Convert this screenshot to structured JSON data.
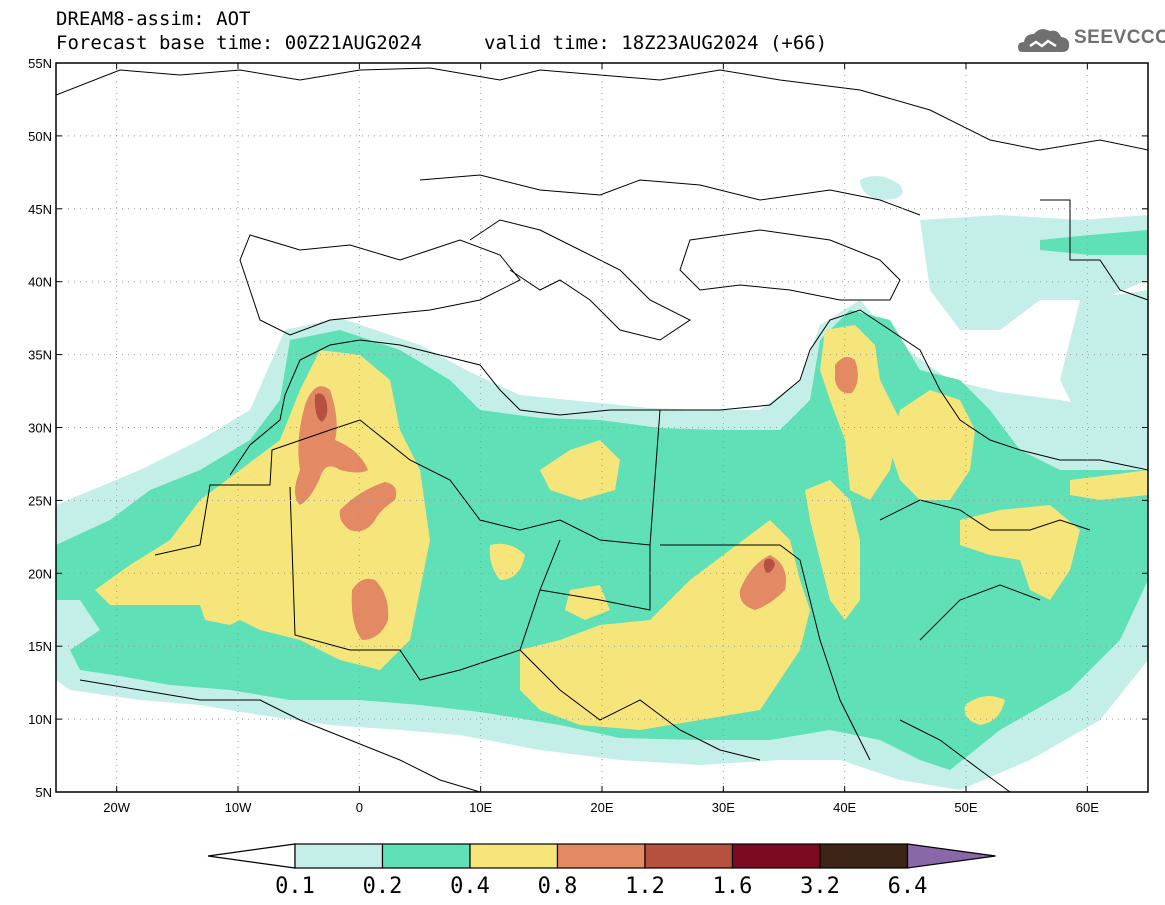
{
  "header": {
    "title": "DREAM8-assim: AOT",
    "base_time": "Forecast base time: 00Z21AUG2024",
    "valid_time": "valid time: 18Z23AUG2024 (+66)"
  },
  "logo": {
    "text": "SEEVCCC",
    "icon": "cloud-icon"
  },
  "map": {
    "lat_labels": [
      "55N",
      "50N",
      "45N",
      "40N",
      "35N",
      "30N",
      "25N",
      "20N",
      "15N",
      "10N",
      "5N"
    ],
    "lon_labels": [
      "20W",
      "10W",
      "0",
      "10E",
      "20E",
      "30E",
      "40E",
      "50E",
      "60E"
    ]
  },
  "legend": {
    "thresholds": [
      "0.1",
      "0.2",
      "0.4",
      "0.8",
      "1.2",
      "1.6",
      "3.2",
      "6.4"
    ],
    "colors": [
      "#ffffff",
      "#c3efe8",
      "#5fe0b7",
      "#f5e57a",
      "#e38a64",
      "#b5513e",
      "#7c0b22",
      "#3c2516",
      "#8a67a8"
    ]
  }
}
